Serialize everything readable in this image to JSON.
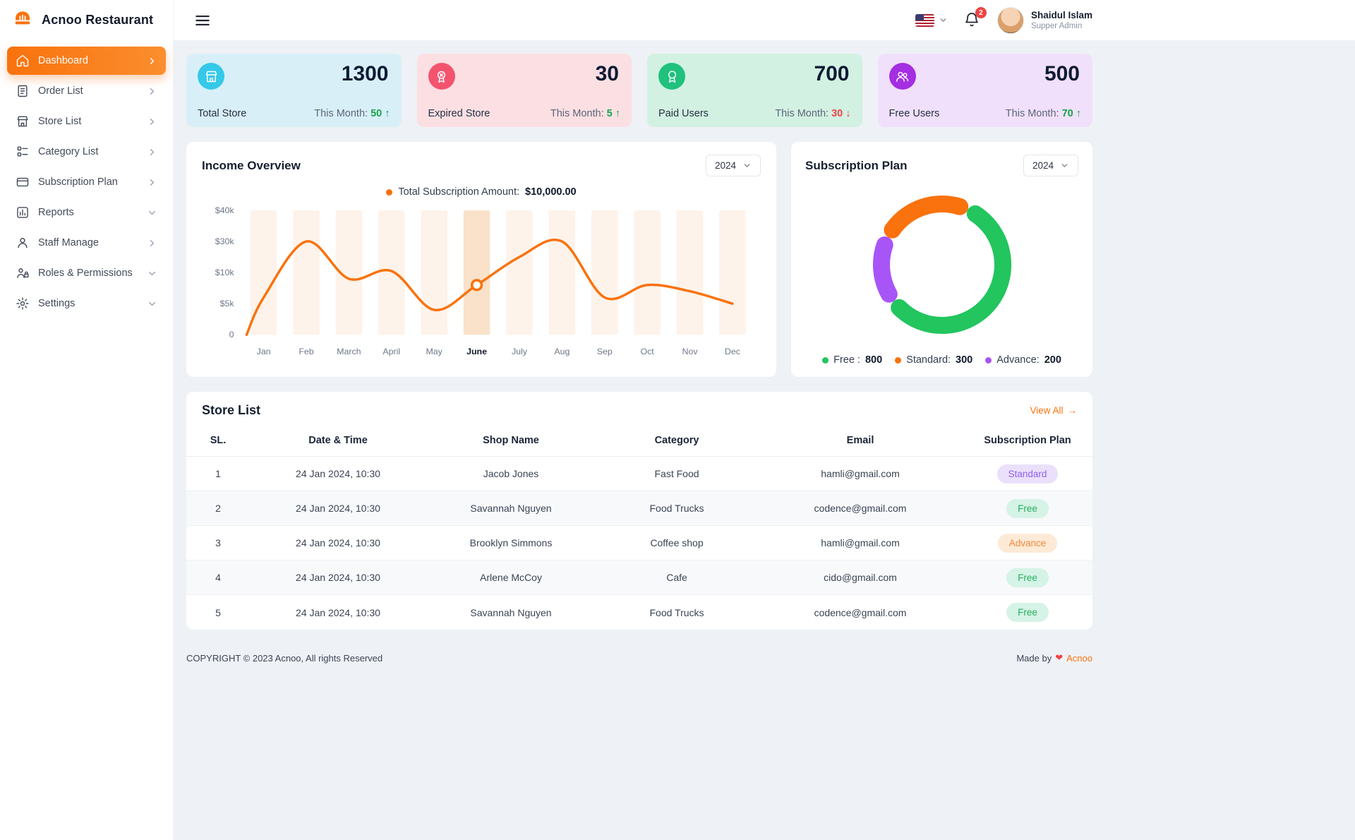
{
  "brand": {
    "name": "Acnoo Restaurant"
  },
  "topbar": {
    "user_name": "Shaidul Islam",
    "user_role": "Supper Admin",
    "notification_count": "2"
  },
  "colors": {
    "up": "#16a34a",
    "down": "#ef4444",
    "accent": "#f9720d"
  },
  "sidebar": {
    "items": [
      {
        "label": "Dashboard",
        "icon": "dashboard",
        "active": true,
        "chevron": "right"
      },
      {
        "label": "Order List",
        "icon": "order-list",
        "active": false,
        "chevron": "right"
      },
      {
        "label": "Store List",
        "icon": "store-list",
        "active": false,
        "chevron": "right"
      },
      {
        "label": "Category List",
        "icon": "category-list",
        "active": false,
        "chevron": "right"
      },
      {
        "label": "Subscription Plan",
        "icon": "subscription-plan",
        "active": false,
        "chevron": "right"
      },
      {
        "label": "Reports",
        "icon": "reports",
        "active": false,
        "chevron": "down"
      },
      {
        "label": "Staff Manage",
        "icon": "staff-manage",
        "active": false,
        "chevron": "right"
      },
      {
        "label": "Roles & Permissions",
        "icon": "roles-permissions",
        "active": false,
        "chevron": "down"
      },
      {
        "label": "Settings",
        "icon": "settings",
        "active": false,
        "chevron": "down"
      }
    ]
  },
  "stats": [
    {
      "value": "1300",
      "label": "Total Store",
      "month_label": "This Month:",
      "month_value": "50",
      "trend": "up",
      "card_bg": "#d8eff8",
      "icon_bg": "#35c8e8",
      "icon": "store"
    },
    {
      "value": "30",
      "label": "Expired Store",
      "month_label": "This Month:",
      "month_value": "5",
      "trend": "up",
      "card_bg": "#fbdfe3",
      "icon_bg": "#f4536e",
      "icon": "expired"
    },
    {
      "value": "700",
      "label": "Paid Users",
      "month_label": "This Month:",
      "month_value": "30",
      "trend": "down",
      "card_bg": "#d2f1e2",
      "icon_bg": "#1fc17d",
      "icon": "paid"
    },
    {
      "value": "500",
      "label": "Free Users",
      "month_label": "This Month:",
      "month_value": "70",
      "trend": "up",
      "card_bg": "#f0e0fb",
      "icon_bg": "#a42ee2",
      "icon": "users"
    }
  ],
  "income": {
    "title": "Income Overview",
    "year": "2024",
    "legend_label": "Total Subscription Amount:",
    "legend_amount": "$10,000.00"
  },
  "subscription": {
    "title": "Subscription Plan",
    "year": "2024",
    "legend": [
      {
        "label": "Free :",
        "value": "800",
        "color": "#22c55e"
      },
      {
        "label": "Standard:",
        "value": "300",
        "color": "#f9720d"
      },
      {
        "label": "Advance:",
        "value": "200",
        "color": "#a855f7"
      }
    ]
  },
  "chart_data": [
    {
      "type": "line",
      "title": "Income Overview",
      "x": [
        "Jan",
        "Feb",
        "March",
        "April",
        "May",
        "June",
        "July",
        "Aug",
        "Sep",
        "Oct",
        "Nov",
        "Dec"
      ],
      "series": [
        {
          "name": "Total Subscription Amount",
          "color": "#f9720d",
          "values": [
            6,
            30,
            9,
            11,
            4,
            8,
            20,
            30,
            6,
            8,
            7,
            5
          ]
        }
      ],
      "unit": "$k",
      "highlight_x": "June",
      "yticks": [
        "0",
        "$5k",
        "$10k",
        "$30k",
        "$40k"
      ],
      "ytick_values": [
        0,
        5,
        10,
        30,
        40
      ],
      "legend_position": "top",
      "grid": false
    },
    {
      "type": "donut",
      "title": "Subscription Plan",
      "segments": [
        {
          "label": "Free",
          "value": 800,
          "color": "#22c55e"
        },
        {
          "label": "Standard",
          "value": 300,
          "color": "#f9720d"
        },
        {
          "label": "Advance",
          "value": 200,
          "color": "#a855f7"
        }
      ],
      "legend_position": "bottom"
    }
  ],
  "store_list": {
    "title": "Store List",
    "view_all": "View All",
    "columns": [
      "SL.",
      "Date & Time",
      "Shop Name",
      "Category",
      "Email",
      "Subscription Plan"
    ],
    "plan_styles": {
      "Standard": {
        "bg": "#ebe0fb",
        "color": "#8f5ff0"
      },
      "Free": {
        "bg": "#d5f3e6",
        "color": "#27ae60"
      },
      "Advance": {
        "bg": "#fdead6",
        "color": "#f0883c"
      }
    },
    "rows": [
      {
        "sl": "1",
        "date": "24 Jan 2024, 10:30",
        "shop": "Jacob Jones",
        "category": "Fast Food",
        "email": "hamli@gmail.com",
        "plan": "Standard"
      },
      {
        "sl": "2",
        "date": "24 Jan 2024, 10:30",
        "shop": "Savannah Nguyen",
        "category": "Food Trucks",
        "email": "codence@gmail.com",
        "plan": "Free"
      },
      {
        "sl": "3",
        "date": "24 Jan 2024, 10:30",
        "shop": "Brooklyn Simmons",
        "category": "Coffee shop",
        "email": "hamli@gmail.com",
        "plan": "Advance"
      },
      {
        "sl": "4",
        "date": "24 Jan 2024, 10:30",
        "shop": "Arlene McCoy",
        "category": "Cafe",
        "email": "cido@gmail.com",
        "plan": "Free"
      },
      {
        "sl": "5",
        "date": "24 Jan 2024, 10:30",
        "shop": "Savannah Nguyen",
        "category": "Food Trucks",
        "email": "codence@gmail.com",
        "plan": "Free"
      }
    ]
  },
  "footer": {
    "copyright": "COPYRIGHT © 2023 Acnoo, All rights Reserved",
    "made_by_label": "Made by",
    "heart": "❤",
    "brand": "Acnoo"
  }
}
